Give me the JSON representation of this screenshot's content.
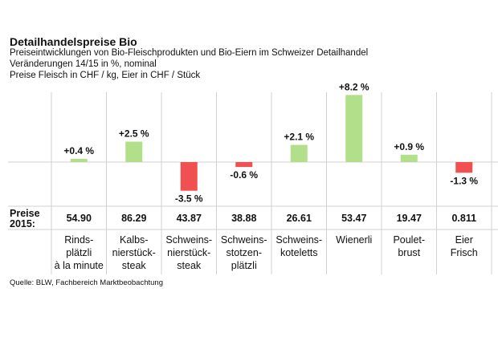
{
  "header": {
    "title": "Detailhandelspreise Bio",
    "subtitle_lines": [
      "Preiseintwicklungen von  Bio-Fleischprodukten und Bio-Eiern im Schweizer Detailhandel",
      "Veränderungen 14/15 in %, nominal",
      "Preise Fleisch in CHF / kg, Eier in CHF / Stück"
    ]
  },
  "chart_data": {
    "type": "bar",
    "categories": [
      [
        "Rinds-",
        "plätzli",
        "à la minute"
      ],
      [
        "Kalbs-",
        "nierstück-",
        "steak"
      ],
      [
        "Schweins-",
        "nierstück-",
        "steak"
      ],
      [
        "Schweins-",
        "stotzen-",
        "plätzli"
      ],
      [
        "Schweins-",
        "koteletts"
      ],
      [
        "Wienerli"
      ],
      [
        "Poulet-",
        "brust"
      ],
      [
        "Eier",
        "Frisch"
      ]
    ],
    "values": [
      0.4,
      2.5,
      -3.5,
      -0.6,
      2.1,
      8.2,
      0.9,
      -1.3
    ],
    "data_labels": [
      "+0.4 %",
      "+2.5 %",
      "-3.5 %",
      "-0.6 %",
      "+2.1 %",
      "+8.2 %",
      "+0.9 %",
      "-1.3 %"
    ],
    "prices_label": [
      "Preise",
      "2015:"
    ],
    "prices": [
      "54.90",
      "86.29",
      "43.87",
      "38.88",
      "26.61",
      "53.47",
      "19.47",
      "0.811"
    ],
    "colors": {
      "positive": "#b2e08a",
      "negative": "#f05050",
      "gridline": "#d0d0d0"
    },
    "ylim": [
      -5,
      9
    ],
    "grid": true,
    "legend": "none"
  },
  "footer": {
    "source": "Quelle: BLW, Fachbereich Marktbeobachtung"
  }
}
